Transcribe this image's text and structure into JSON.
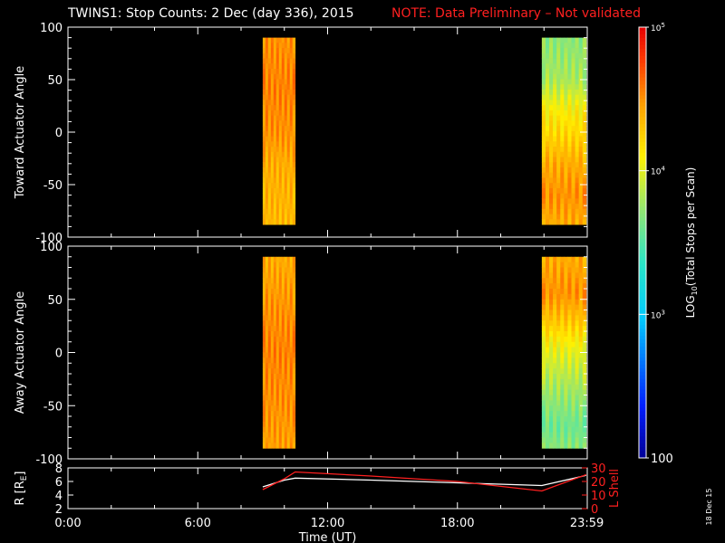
{
  "header": {
    "title": "TWINS1: Stop Counts:  2 Dec (day 336), 2015",
    "note": "NOTE: Data Preliminary – Not validated",
    "note_color": "#ff2020"
  },
  "stamp": "18 Dec 15",
  "chart_data": [
    {
      "type": "heatmap",
      "panel": "toward",
      "ylabel": "Toward Actuator Angle",
      "ylim": [
        -100,
        100
      ],
      "yticks": [
        "100",
        "50",
        "0",
        "-50",
        "-100"
      ],
      "xlim_hours": [
        0,
        24
      ],
      "scans": [
        {
          "start_hour": 9.0,
          "end_hour": 10.5,
          "angle_range": [
            -88,
            90
          ],
          "profile_log10": [
            {
              "angle": 90,
              "v": 4.5
            },
            {
              "angle": 40,
              "v": 4.55
            },
            {
              "angle": 0,
              "v": 4.5
            },
            {
              "angle": -30,
              "v": 4.4
            },
            {
              "angle": -88,
              "v": 4.35
            }
          ]
        },
        {
          "start_hour": 21.9,
          "end_hour": 23.95,
          "angle_range": [
            -88,
            90
          ],
          "profile_log10": [
            {
              "angle": 90,
              "v": 3.7
            },
            {
              "angle": 50,
              "v": 3.8
            },
            {
              "angle": 20,
              "v": 4.1
            },
            {
              "angle": 0,
              "v": 4.2
            },
            {
              "angle": -30,
              "v": 4.4
            },
            {
              "angle": -60,
              "v": 4.5
            },
            {
              "angle": -88,
              "v": 4.4
            }
          ]
        }
      ]
    },
    {
      "type": "heatmap",
      "panel": "away",
      "ylabel": "Away Actuator Angle",
      "ylim": [
        -100,
        100
      ],
      "yticks": [
        "100",
        "50",
        "0",
        "-50",
        "-100"
      ],
      "xlim_hours": [
        0,
        24
      ],
      "scans": [
        {
          "start_hour": 9.0,
          "end_hour": 10.5,
          "angle_range": [
            -90,
            90
          ],
          "profile_log10": [
            {
              "angle": 90,
              "v": 4.4
            },
            {
              "angle": 40,
              "v": 4.5
            },
            {
              "angle": 0,
              "v": 4.55
            },
            {
              "angle": -50,
              "v": 4.5
            },
            {
              "angle": -90,
              "v": 4.45
            }
          ]
        },
        {
          "start_hour": 21.9,
          "end_hour": 23.95,
          "angle_range": [
            -90,
            90
          ],
          "profile_log10": [
            {
              "angle": 90,
              "v": 4.4
            },
            {
              "angle": 55,
              "v": 4.5
            },
            {
              "angle": 30,
              "v": 4.3
            },
            {
              "angle": 0,
              "v": 4.0
            },
            {
              "angle": -40,
              "v": 3.75
            },
            {
              "angle": -70,
              "v": 3.6
            },
            {
              "angle": -90,
              "v": 3.7
            }
          ]
        }
      ]
    },
    {
      "type": "line",
      "panel": "orbit",
      "ylabel": "R [R",
      "ylabel_sub": "E",
      "ylabel_end": "]",
      "ylim": [
        2,
        8
      ],
      "yticks": [
        "8",
        "6",
        "4",
        "2"
      ],
      "y2label": "L Shell",
      "y2lim": [
        0,
        30
      ],
      "y2ticks": [
        "30",
        "20",
        "10",
        "0"
      ],
      "xlabel": "Time (UT)",
      "xticks": [
        {
          "hour": 0,
          "label": "0:00"
        },
        {
          "hour": 6,
          "label": "6:00"
        },
        {
          "hour": 12,
          "label": "12:00"
        },
        {
          "hour": 18,
          "label": "18:00"
        },
        {
          "hour": 23.983,
          "label": "23:59"
        }
      ],
      "series": [
        {
          "axis": "left",
          "color": "#ffffff",
          "points": [
            [
              9.0,
              5.2
            ],
            [
              10.0,
              6.2
            ],
            [
              10.5,
              6.5
            ],
            [
              14,
              6.2
            ],
            [
              18,
              5.8
            ],
            [
              21.9,
              5.4
            ],
            [
              23.95,
              6.9
            ]
          ]
        },
        {
          "axis": "right",
          "color": "#ff2020",
          "points": [
            [
              9.0,
              14
            ],
            [
              10.0,
              22
            ],
            [
              10.5,
              27
            ],
            [
              14,
              24
            ],
            [
              18,
              20
            ],
            [
              21.9,
              13
            ],
            [
              23.95,
              25
            ]
          ]
        }
      ]
    },
    {
      "type": "colorbar",
      "label_prefix": "LOG",
      "label_sub": "10",
      "label_rest": "(Total Stops per Scan)",
      "range_log10": [
        2,
        5
      ],
      "ticks": [
        {
          "log10": 5,
          "base": "10",
          "exp": "5"
        },
        {
          "log10": 4,
          "base": "10",
          "exp": "4"
        },
        {
          "log10": 3,
          "base": "10",
          "exp": "3"
        },
        {
          "log10": 2,
          "plain": "100"
        }
      ]
    }
  ]
}
